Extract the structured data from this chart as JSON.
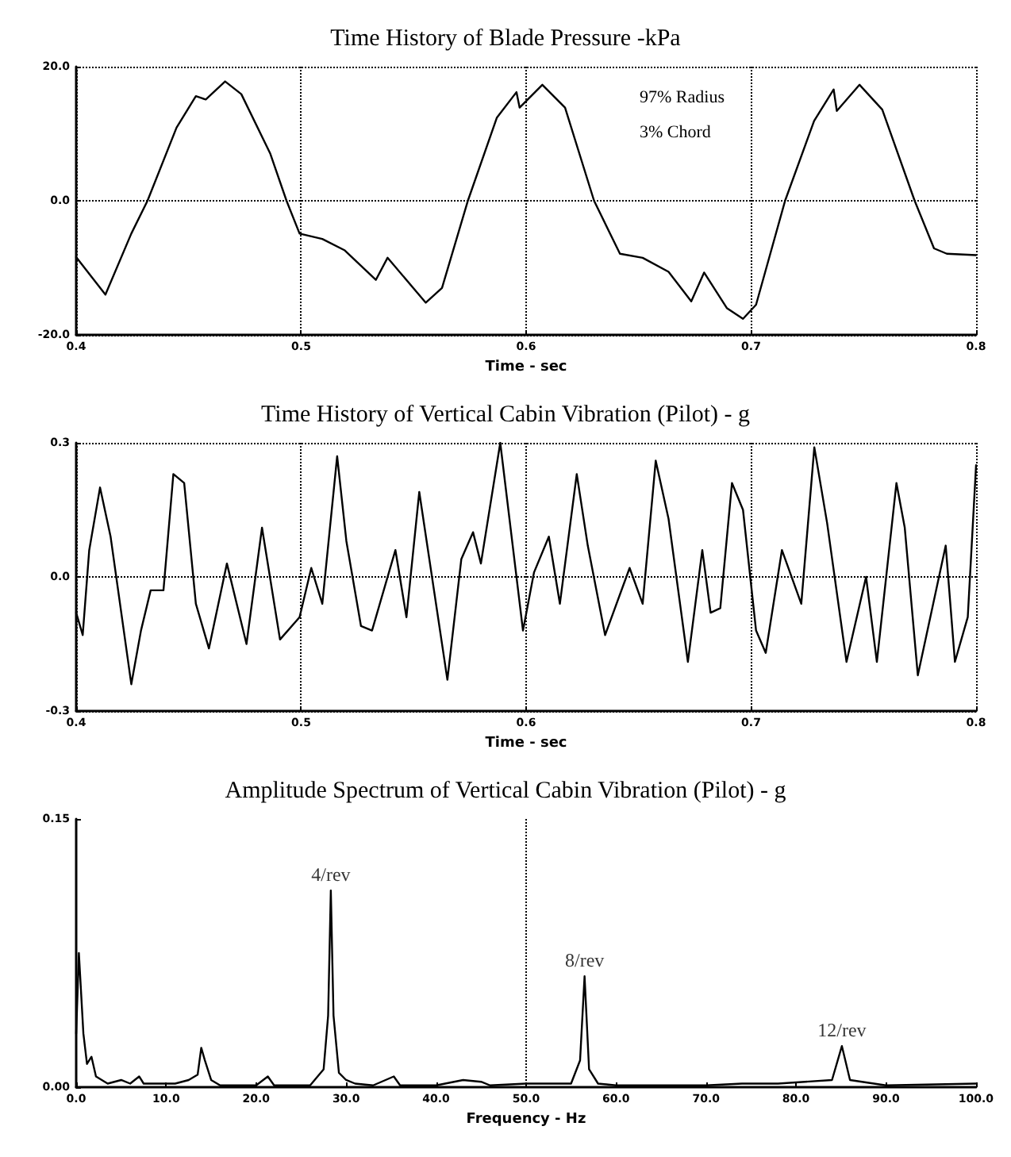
{
  "chart_data": [
    {
      "type": "line",
      "title": "Time History of Blade Pressure -kPa",
      "xlabel": "Time - sec",
      "annotations": [
        "97% Radius",
        "3% Chord"
      ],
      "grid": true,
      "marker": "none",
      "line_style": "solid",
      "xlim": [
        0.4,
        0.8
      ],
      "xticks": [
        0.4,
        0.5,
        0.6,
        0.7,
        0.8
      ],
      "ylim": [
        -20,
        20
      ],
      "yticks": [
        {
          "value": -20,
          "label": "-20.0"
        },
        {
          "value": 0,
          "label": "0.0"
        },
        {
          "value": 20,
          "label": "20.0"
        }
      ],
      "series": [
        {
          "color": "#000000",
          "x": [
            0.4,
            0.413,
            0.4245,
            0.4317,
            0.4446,
            0.4532,
            0.4576,
            0.4662,
            0.4734,
            0.4863,
            0.4935,
            0.4993,
            0.5094,
            0.5194,
            0.5332,
            0.5384,
            0.5554,
            0.5626,
            0.5741,
            0.587,
            0.5957,
            0.5971,
            0.6072,
            0.6173,
            0.6302,
            0.6417,
            0.6518,
            0.6633,
            0.6734,
            0.6791,
            0.6892,
            0.6964,
            0.7022,
            0.7151,
            0.728,
            0.7367,
            0.7381,
            0.7482,
            0.7583,
            0.7727,
            0.7813,
            0.787,
            0.8
          ],
          "values": [
            -8.4,
            -14,
            -4.9,
            0,
            10.9,
            15.6,
            15.1,
            17.8,
            15.9,
            7,
            0,
            -4.9,
            -5.7,
            -7.4,
            -11.8,
            -8.5,
            -15.2,
            -13,
            0,
            12.4,
            16.2,
            13.9,
            17.3,
            13.9,
            0,
            -7.9,
            -8.5,
            -10.6,
            -15,
            -10.7,
            -16,
            -17.6,
            -15.5,
            0,
            11.9,
            16.6,
            13.4,
            17.3,
            13.6,
            0,
            -7.1,
            -7.9,
            -8.1
          ]
        }
      ]
    },
    {
      "type": "line",
      "title": "Time History of Vertical Cabin Vibration (Pilot) - g",
      "xlabel": "Time - sec",
      "grid": true,
      "marker": "none",
      "line_style": "solid",
      "xlim": [
        0.4,
        0.8
      ],
      "xticks": [
        0.4,
        0.5,
        0.6,
        0.7,
        0.8
      ],
      "ylim": [
        -0.3,
        0.3
      ],
      "yticks": [
        -0.3,
        {
          "value": 0,
          "label": "0.0"
        },
        0.3
      ],
      "series": [
        {
          "color": "#000000",
          "x": [
            0.4,
            0.4029,
            0.4058,
            0.4106,
            0.4153,
            0.4245,
            0.4288,
            0.4331,
            0.4388,
            0.4432,
            0.448,
            0.4532,
            0.459,
            0.467,
            0.4757,
            0.4826,
            0.4906,
            0.4993,
            0.5045,
            0.5094,
            0.516,
            0.5201,
            0.5266,
            0.5315,
            0.5419,
            0.5468,
            0.5525,
            0.565,
            0.5712,
            0.5764,
            0.5799,
            0.5885,
            0.5986,
            0.6035,
            0.6101,
            0.615,
            0.6225,
            0.6274,
            0.6351,
            0.646,
            0.6518,
            0.6576,
            0.6633,
            0.6719,
            0.6783,
            0.682,
            0.6863,
            0.6915,
            0.6964,
            0.7022,
            0.7065,
            0.7137,
            0.7223,
            0.7281,
            0.7338,
            0.7424,
            0.7511,
            0.7559,
            0.7646,
            0.7683,
            0.7741,
            0.7865,
            0.7906,
            0.7963,
            0.8
          ],
          "values": [
            -0.08,
            -0.13,
            0.06,
            0.2,
            0.09,
            -0.24,
            -0.12,
            -0.03,
            -0.03,
            0.23,
            0.21,
            -0.06,
            -0.16,
            0.03,
            -0.15,
            0.11,
            -0.14,
            -0.09,
            0.02,
            -0.06,
            0.27,
            0.08,
            -0.11,
            -0.12,
            0.06,
            -0.09,
            0.19,
            -0.23,
            0.04,
            0.1,
            0.03,
            0.3,
            -0.12,
            0.01,
            0.09,
            -0.06,
            0.23,
            0.07,
            -0.13,
            0.02,
            -0.06,
            0.26,
            0.13,
            -0.19,
            0.06,
            -0.08,
            -0.07,
            0.21,
            0.15,
            -0.12,
            -0.17,
            0.06,
            -0.06,
            0.29,
            0.12,
            -0.19,
            0,
            -0.19,
            0.21,
            0.11,
            -0.22,
            0.07,
            -0.19,
            -0.09,
            0.25
          ]
        }
      ]
    },
    {
      "type": "line",
      "title": "Amplitude Spectrum of Vertical Cabin Vibration (Pilot) - g",
      "xlabel": "Frequency - Hz",
      "grid": false,
      "marker": "none",
      "line_style": "solid",
      "annotations": [
        {
          "text": "4/rev",
          "x": 28.3,
          "y": 0.11
        },
        {
          "text": "8/rev",
          "x": 56.5,
          "y": 0.062
        },
        {
          "text": "12/rev",
          "x": 85.1,
          "y": 0.023
        }
      ],
      "ref_lines": [
        {
          "axis": "x",
          "value": 50,
          "line_style": "dotted"
        }
      ],
      "xlim": [
        0,
        100
      ],
      "xticks": [
        {
          "value": 0,
          "label": "0.0"
        },
        {
          "value": 10,
          "label": "10.0"
        },
        {
          "value": 20,
          "label": "20.0"
        },
        {
          "value": 30,
          "label": "30.0"
        },
        {
          "value": 40,
          "label": "40.0"
        },
        {
          "value": 50,
          "label": "50.0"
        },
        {
          "value": 60,
          "label": "60.0"
        },
        {
          "value": 70,
          "label": "70.0"
        },
        {
          "value": 80,
          "label": "80.0"
        },
        {
          "value": 90,
          "label": "90.0"
        },
        {
          "value": 100,
          "label": "100.0"
        }
      ],
      "ylim": [
        0,
        0.15
      ],
      "yticks": [
        {
          "value": 0,
          "label": "0.00"
        },
        0.15
      ],
      "series": [
        {
          "color": "#000000",
          "x": [
            0,
            0.3,
            0.8,
            1.2,
            1.7,
            2.2,
            3.5,
            5,
            6,
            7,
            7.5,
            9,
            11,
            12.5,
            13.5,
            13.9,
            14.3,
            15,
            16,
            20,
            21.3,
            22,
            26,
            27.5,
            28,
            28.3,
            28.6,
            29.2,
            30,
            31,
            33,
            35.3,
            36,
            40,
            43,
            45,
            46,
            50,
            55,
            56,
            56.5,
            57,
            58,
            60,
            70,
            74,
            78,
            84,
            85.1,
            86,
            90,
            100
          ],
          "values": [
            0.03,
            0.075,
            0.03,
            0.013,
            0.017,
            0.006,
            0.002,
            0.004,
            0.002,
            0.006,
            0.002,
            0.002,
            0.002,
            0.004,
            0.007,
            0.022,
            0.015,
            0.004,
            0.001,
            0.001,
            0.006,
            0.001,
            0.001,
            0.01,
            0.04,
            0.11,
            0.04,
            0.008,
            0.004,
            0.002,
            0.001,
            0.006,
            0.001,
            0.001,
            0.004,
            0.003,
            0.001,
            0.002,
            0.002,
            0.015,
            0.062,
            0.01,
            0.002,
            0.001,
            0.001,
            0.002,
            0.002,
            0.004,
            0.023,
            0.004,
            0.001,
            0.002
          ]
        }
      ]
    }
  ]
}
